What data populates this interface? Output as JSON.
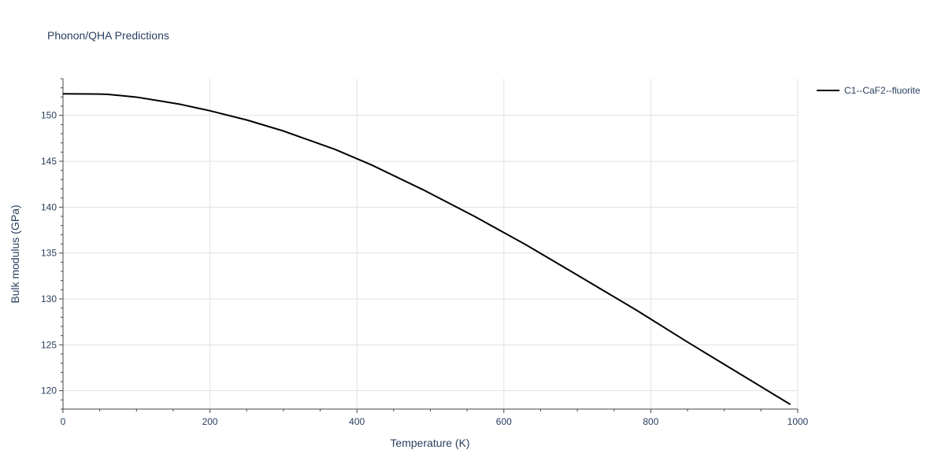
{
  "chart_data": {
    "type": "line",
    "title": "Phonon/QHA Predictions",
    "xlabel": "Temperature (K)",
    "ylabel": "Bulk modulus (GPa)",
    "xlim": [
      0,
      1000
    ],
    "ylim": [
      118,
      154
    ],
    "x_ticks": [
      0,
      200,
      400,
      600,
      800,
      1000
    ],
    "y_ticks": [
      120,
      125,
      130,
      135,
      140,
      145,
      150
    ],
    "grid": true,
    "legend_position": "top-right",
    "series": [
      {
        "name": "C1--CaF2--fluorite",
        "color": "#000000",
        "x": [
          0,
          20,
          40,
          60,
          80,
          100,
          130,
          160,
          200,
          250,
          300,
          370,
          420,
          490,
          560,
          630,
          700,
          780,
          850,
          920,
          990
        ],
        "y": [
          152.35,
          152.34,
          152.33,
          152.3,
          152.15,
          151.99,
          151.6,
          151.2,
          150.5,
          149.5,
          148.3,
          146.3,
          144.6,
          141.9,
          139.0,
          135.9,
          132.6,
          128.8,
          125.3,
          121.9,
          118.5
        ]
      }
    ]
  }
}
